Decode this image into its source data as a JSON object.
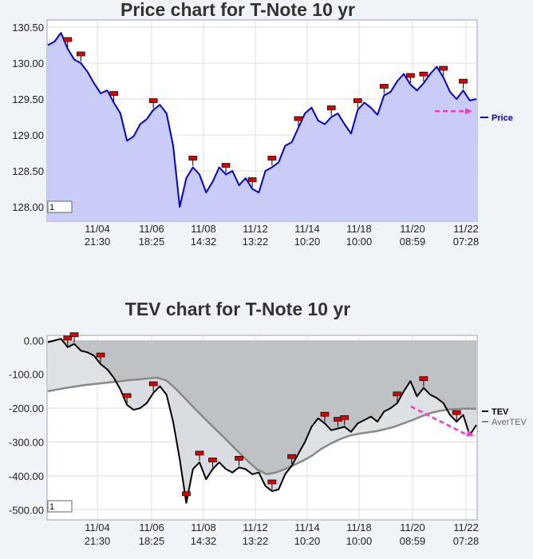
{
  "chart_data": [
    {
      "type": "area",
      "title": "Price chart for T-Note 10 yr",
      "xlabel": "",
      "ylabel": "",
      "ylim": [
        127.8,
        130.6
      ],
      "y_ticks": [
        "130.50",
        "130.00",
        "129.50",
        "129.00",
        "128.50",
        "128.00"
      ],
      "x_ticks": [
        {
          "date": "11/04",
          "time": "21:30"
        },
        {
          "date": "11/06",
          "time": "18:25"
        },
        {
          "date": "11/08",
          "time": "14:32"
        },
        {
          "date": "11/12",
          "time": "13:22"
        },
        {
          "date": "11/14",
          "time": "10:20"
        },
        {
          "date": "11/18",
          "time": "10:00"
        },
        {
          "date": "11/20",
          "time": "08:59"
        },
        {
          "date": "11/22",
          "time": "07:28"
        }
      ],
      "box_label": "1",
      "series": [
        {
          "name": "Price",
          "color": "#0000e0",
          "fill": "#c8ccf6",
          "values": [
            130.25,
            130.3,
            130.42,
            130.2,
            130.05,
            130.0,
            129.88,
            129.72,
            129.58,
            129.62,
            129.45,
            129.3,
            128.92,
            128.98,
            129.15,
            129.22,
            129.35,
            129.42,
            129.3,
            128.85,
            128.0,
            128.4,
            128.55,
            128.45,
            128.2,
            128.35,
            128.55,
            128.45,
            128.5,
            128.3,
            128.4,
            128.25,
            128.2,
            128.5,
            128.55,
            128.62,
            128.85,
            128.9,
            129.1,
            129.3,
            129.38,
            129.2,
            129.15,
            129.25,
            129.3,
            129.15,
            129.02,
            129.35,
            129.45,
            129.38,
            129.28,
            129.55,
            129.6,
            129.75,
            129.85,
            129.7,
            129.62,
            129.72,
            129.85,
            129.95,
            129.8,
            129.6,
            129.5,
            129.62,
            129.48,
            129.5
          ]
        }
      ],
      "flags": 16,
      "trend_arrow": {
        "color": "#ff33cc",
        "from": 129.33,
        "to": 129.33
      }
    },
    {
      "type": "line",
      "title": "TEV chart for T-Note 10 yr",
      "xlabel": "",
      "ylabel": "",
      "ylim": [
        -530,
        15
      ],
      "y_ticks": [
        "0.00",
        "-100.00",
        "-200.00",
        "-300.00",
        "-400.00",
        "-500.00"
      ],
      "x_ticks": [
        {
          "date": "11/04",
          "time": "21:30"
        },
        {
          "date": "11/06",
          "time": "18:25"
        },
        {
          "date": "11/08",
          "time": "14:32"
        },
        {
          "date": "11/12",
          "time": "13:22"
        },
        {
          "date": "11/14",
          "time": "10:20"
        },
        {
          "date": "11/18",
          "time": "10:00"
        },
        {
          "date": "11/20",
          "time": "08:59"
        },
        {
          "date": "11/22",
          "time": "07:28"
        }
      ],
      "box_label": "1",
      "series": [
        {
          "name": "TEV",
          "color": "#000000",
          "values": [
            -5,
            0,
            5,
            -20,
            -10,
            -30,
            -35,
            -45,
            -70,
            -85,
            -110,
            -145,
            -190,
            -205,
            -200,
            -185,
            -155,
            -135,
            -160,
            -240,
            -350,
            -480,
            -380,
            -360,
            -410,
            -380,
            -360,
            -380,
            -390,
            -375,
            -380,
            -395,
            -390,
            -430,
            -445,
            -440,
            -395,
            -370,
            -335,
            -300,
            -255,
            -230,
            -245,
            -265,
            -260,
            -255,
            -270,
            -245,
            -235,
            -225,
            -240,
            -210,
            -200,
            -185,
            -150,
            -120,
            -165,
            -140,
            -160,
            -170,
            -185,
            -220,
            -240,
            -220,
            -280,
            -250
          ]
        },
        {
          "name": "AverTEV",
          "color": "#888888",
          "values": [
            -150,
            -145,
            -140,
            -136,
            -132,
            -129,
            -126,
            -123,
            -120,
            -117,
            -115,
            -112,
            -110,
            -118,
            -142,
            -170,
            -198,
            -225,
            -252,
            -278,
            -305,
            -332,
            -358,
            -382,
            -395,
            -390,
            -380,
            -368,
            -355,
            -340,
            -320,
            -305,
            -292,
            -282,
            -276,
            -272,
            -268,
            -262,
            -255,
            -245,
            -235,
            -224,
            -214,
            -208,
            -204,
            -202,
            -201,
            -202
          ]
        }
      ],
      "flags": 17,
      "trend_arrow": {
        "color": "#ff33cc",
        "from": -195,
        "to": -282
      }
    }
  ]
}
